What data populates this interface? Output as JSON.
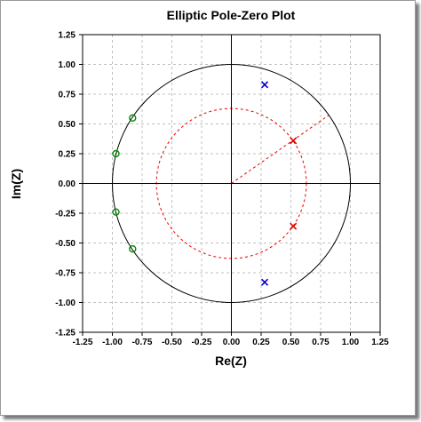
{
  "chart_data": {
    "type": "scatter",
    "title": "Elliptic Pole-Zero Plot",
    "xlabel": "Re(Z)",
    "ylabel": "Im(Z)",
    "xlim": [
      -1.25,
      1.25
    ],
    "ylim": [
      -1.25,
      1.25
    ],
    "xticks": [
      -1.25,
      -1.0,
      -0.75,
      -0.5,
      -0.25,
      0.0,
      0.25,
      0.5,
      0.75,
      1.0,
      1.25
    ],
    "yticks": [
      -1.25,
      -1.0,
      -0.75,
      -0.5,
      -0.25,
      0.0,
      0.25,
      0.5,
      0.75,
      1.0,
      1.25
    ],
    "xtick_labels": [
      "-1.25",
      "-1.00",
      "-0.75",
      "-0.50",
      "-0.25",
      "0.00",
      "0.25",
      "0.50",
      "0.75",
      "1.00",
      "1.25"
    ],
    "ytick_labels": [
      "-1.25",
      "-1.00",
      "-0.75",
      "-0.50",
      "-0.25",
      "0.00",
      "0.25",
      "0.50",
      "0.75",
      "1.00",
      "1.25"
    ],
    "grid": true,
    "unit_circle_radius": 1.0,
    "dashed_circle_radius": 0.63,
    "dashed_radius_line_angle_deg": 35,
    "series": [
      {
        "marker": "x",
        "color": "#0000cc",
        "points": [
          [
            0.28,
            0.83
          ],
          [
            0.28,
            -0.83
          ]
        ]
      },
      {
        "marker": "x",
        "color": "#dd0000",
        "points": [
          [
            0.52,
            0.36
          ],
          [
            0.52,
            -0.36
          ]
        ]
      },
      {
        "marker": "o",
        "color": "#008800",
        "points": [
          [
            -0.83,
            0.55
          ],
          [
            -0.97,
            0.25
          ],
          [
            -0.97,
            -0.24
          ],
          [
            -0.83,
            -0.55
          ]
        ]
      }
    ],
    "colors": {
      "unit_circle": "#000000",
      "dashed_circle": "#ee0000",
      "grid": "#c0c0c0"
    }
  }
}
